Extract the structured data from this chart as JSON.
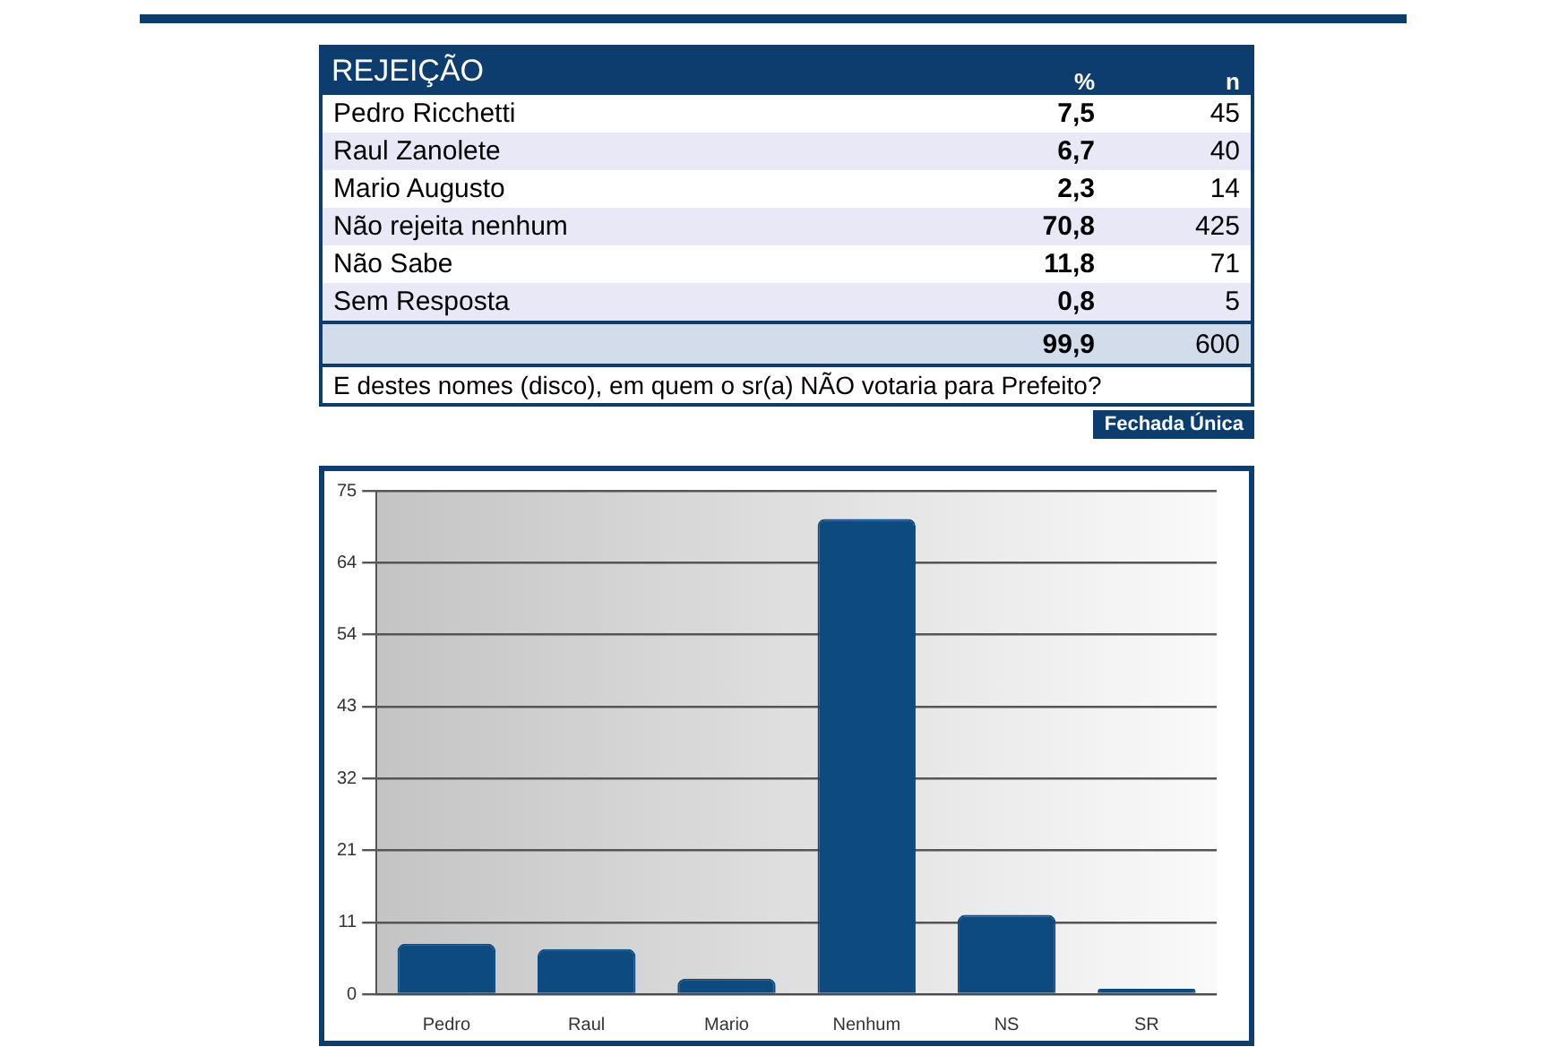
{
  "chart_data": [
    {
      "type": "other",
      "title": "REJEIÇÃO",
      "categories": [
        "Pedro Ricchetti",
        "Raul Zanolete",
        "Mario Augusto",
        "Não rejeita nenhum",
        "Não Sabe",
        "Sem Resposta"
      ],
      "series": [
        {
          "name": "%",
          "colors": [
            "#ffffff",
            "#e8e8f6",
            "#ffffff",
            "#e8e8f6",
            "#ffffff",
            "#e8e8f6"
          ],
          "values": [
            7.5,
            6.7,
            2.3,
            70.8,
            11.8,
            0.8
          ],
          "value_labels": [
            "7,5",
            "6,7",
            "2,3",
            "70,8",
            "11,8",
            "0,8"
          ]
        },
        {
          "name": "n",
          "values": [
            45,
            40,
            14,
            425,
            71,
            5
          ]
        }
      ],
      "data_labels": true,
      "totals": [
        "99,9",
        "600"
      ],
      "annotations": [
        "E destes nomes (disco), em quem o sr(a) NÃO votaria para Prefeito?",
        "Fechada Única"
      ]
    },
    {
      "type": "bar",
      "categories": [
        "Pedro",
        "Raul",
        "Mario",
        "Nenhum",
        "NS",
        "SR"
      ],
      "values": [
        7.5,
        6.7,
        2.3,
        70.8,
        11.8,
        0.8
      ],
      "color": "#0d4a80",
      "ylim": [
        0,
        75
      ],
      "yticks": [
        0,
        {
          "value": 10.71,
          "label": "11"
        },
        {
          "value": 21.43,
          "label": "21"
        },
        {
          "value": 32.14,
          "label": "32"
        },
        {
          "value": 42.86,
          "label": "43"
        },
        {
          "value": 53.57,
          "label": "54"
        },
        {
          "value": 64.29,
          "label": "64"
        },
        75
      ],
      "grid": "y"
    }
  ]
}
